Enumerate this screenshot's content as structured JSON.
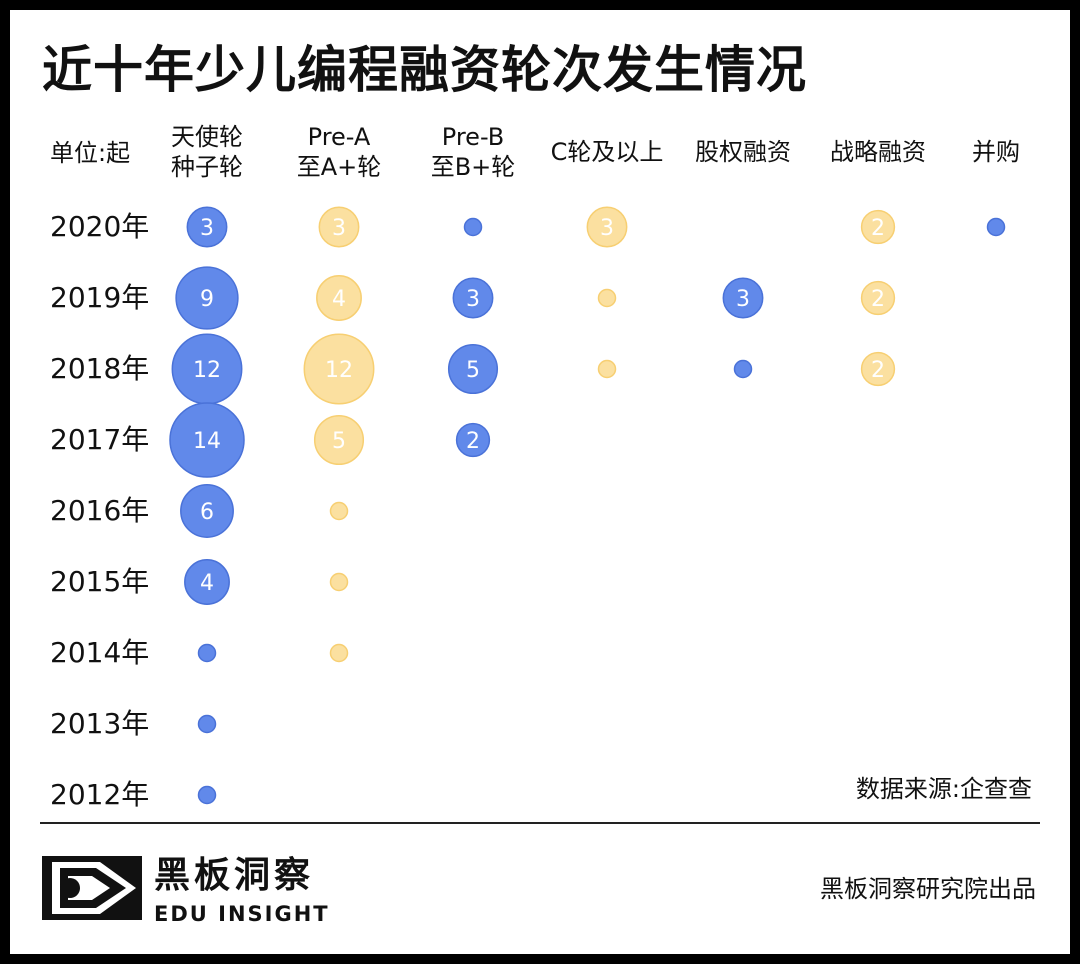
{
  "title": "近十年少儿编程融资轮次发生情况",
  "unit_label": "单位:起",
  "source": "数据来源:企查查",
  "credit": "黑板洞察研究院出品",
  "logo": {
    "cn": "黑板洞察",
    "en": "EDU INSIGHT",
    "icon": "eye-logo-icon"
  },
  "colors": {
    "blue": "#6189ea",
    "blue_edge": "#4a72d8",
    "yellow": "#fbe0a0",
    "yellow_edge": "#f7cf72"
  },
  "chart_data": {
    "type": "scatter",
    "title": "近十年少儿编程融资轮次发生情况",
    "categories": [
      [
        "天使轮",
        "种子轮"
      ],
      [
        "Pre-A",
        "至A+轮"
      ],
      [
        "Pre-B",
        "至B+轮"
      ],
      [
        "C轮及以上"
      ],
      [
        "股权融资"
      ],
      [
        "战略融资"
      ],
      [
        "并购"
      ]
    ],
    "years": [
      "2020年",
      "2019年",
      "2018年",
      "2017年",
      "2016年",
      "2015年",
      "2014年",
      "2013年",
      "2012年"
    ],
    "series_colors": [
      "blue",
      "yellow",
      "blue",
      "yellow",
      "blue",
      "yellow",
      "blue"
    ],
    "values": [
      [
        3,
        3,
        1,
        3,
        null,
        2,
        1
      ],
      [
        9,
        4,
        3,
        1,
        3,
        2,
        null
      ],
      [
        12,
        12,
        5,
        1,
        1,
        2,
        null
      ],
      [
        14,
        5,
        2,
        null,
        null,
        null,
        null
      ],
      [
        6,
        1,
        null,
        null,
        null,
        null,
        null
      ],
      [
        4,
        1,
        null,
        null,
        null,
        null,
        null
      ],
      [
        1,
        1,
        null,
        null,
        null,
        null,
        null
      ],
      [
        1,
        null,
        null,
        null,
        null,
        null,
        null
      ],
      [
        1,
        null,
        null,
        null,
        null,
        null,
        null
      ]
    ],
    "legend": "none",
    "grid": false
  }
}
